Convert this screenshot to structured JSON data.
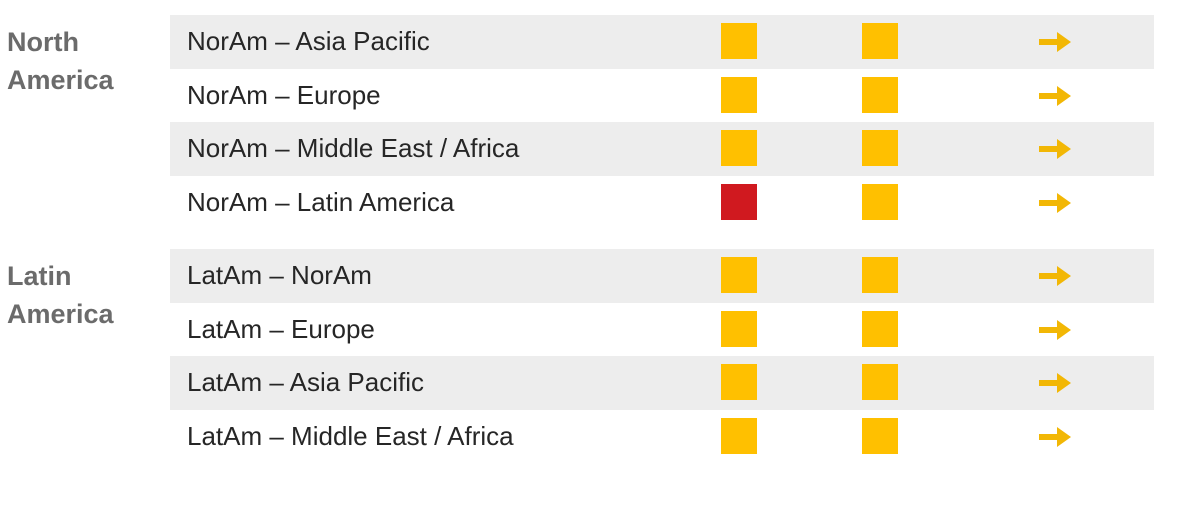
{
  "groups": [
    {
      "label": "North America",
      "rows": [
        {
          "label": "NorAm – Asia Pacific",
          "indicators": [
            "#ffc000",
            "#ffc000"
          ]
        },
        {
          "label": "NorAm – Europe",
          "indicators": [
            "#ffc000",
            "#ffc000"
          ]
        },
        {
          "label": "NorAm – Middle East / Africa",
          "indicators": [
            "#ffc000",
            "#ffc000"
          ]
        },
        {
          "label": "NorAm – Latin America",
          "indicators": [
            "#d0191f",
            "#ffc000"
          ]
        }
      ]
    },
    {
      "label": "Latin America",
      "rows": [
        {
          "label": "LatAm – NorAm",
          "indicators": [
            "#ffc000",
            "#ffc000"
          ]
        },
        {
          "label": "LatAm – Europe",
          "indicators": [
            "#ffc000",
            "#ffc000"
          ]
        },
        {
          "label": "LatAm – Asia Pacific",
          "indicators": [
            "#ffc000",
            "#ffc000"
          ]
        },
        {
          "label": "LatAm – Middle East / Africa",
          "indicators": [
            "#ffc000",
            "#ffc000"
          ]
        }
      ]
    }
  ]
}
